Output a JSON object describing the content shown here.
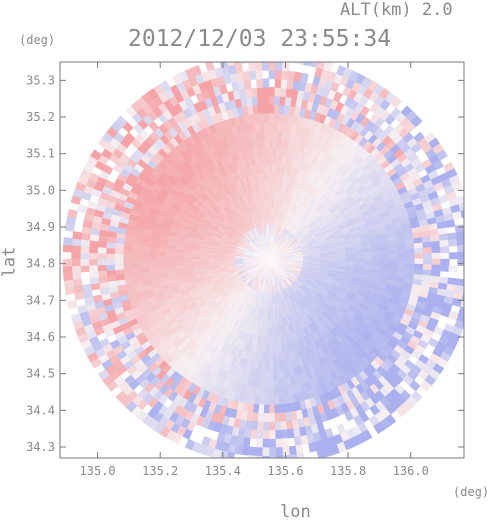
{
  "header": {
    "altitude_label": "ALT(km) 2.0",
    "timestamp": "2012/12/03 23:55:34"
  },
  "axes": {
    "x_unit": "(deg)",
    "y_unit": "(deg)",
    "x_label": "lon",
    "y_label": "lat",
    "x_ticks": [
      "135.0",
      "135.2",
      "135.4",
      "135.6",
      "135.8",
      "136.0"
    ],
    "y_ticks": [
      "35.3",
      "35.2",
      "35.1",
      "35.0",
      "34.9",
      "34.8",
      "34.7",
      "34.6",
      "34.5",
      "34.4",
      "34.3"
    ]
  },
  "map": {
    "type": "radar doppler velocity PPI",
    "x_range": [
      134.88,
      136.17
    ],
    "y_range": [
      34.27,
      35.35
    ],
    "colors": {
      "receding": "#f5a3a6",
      "approaching": "#aab1ee",
      "near_zero": "#f6f0f2",
      "frame": "#777777",
      "text": "#8a8a8a"
    }
  }
}
